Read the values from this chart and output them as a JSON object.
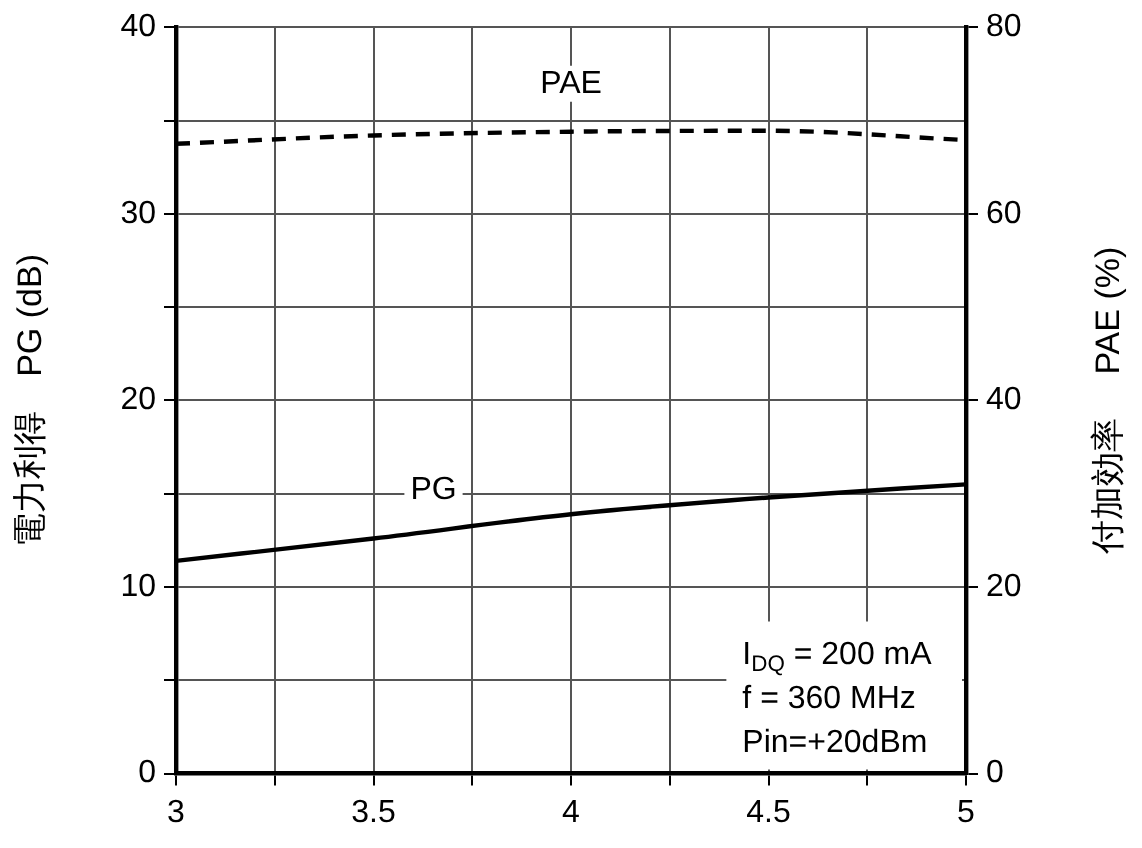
{
  "chart_data": {
    "type": "line",
    "xlabel": null,
    "ylabel": "電力利得　PG (dB)",
    "y2label": "付加効率　 PAE (%)",
    "xlim": [
      3,
      5
    ],
    "xticks": [
      3,
      {
        "value": 3.25,
        "label": null
      },
      3.5,
      {
        "value": 3.75,
        "label": null
      },
      4,
      {
        "value": 4.25,
        "label": null
      },
      4.5,
      {
        "value": 4.75,
        "label": null
      },
      5
    ],
    "ylim": [
      0,
      40
    ],
    "yticks": [
      0,
      {
        "value": 5,
        "label": null
      },
      10,
      {
        "value": 15,
        "label": null
      },
      20,
      {
        "value": 25,
        "label": null
      },
      30,
      {
        "value": 35,
        "label": null
      },
      40
    ],
    "y2lim": [
      0,
      80
    ],
    "y2ticks": [
      0,
      20,
      40,
      60,
      80
    ],
    "grid": true,
    "marker": "none",
    "x": [
      3,
      3.5,
      4,
      4.5,
      5
    ],
    "series": [
      {
        "name": "PAE",
        "color": "#000000",
        "axis": "y2",
        "line_style": "dashed",
        "values": [
          67.5,
          68.4,
          68.8,
          68.9,
          67.9
        ]
      },
      {
        "name": "PG",
        "color": "#000000",
        "axis": "y",
        "line_style": "solid",
        "values": [
          11.4,
          12.6,
          13.9,
          14.8,
          15.5
        ]
      }
    ],
    "annotations": [
      "I$_{DQ}$ = 200 mA",
      "f = 360 MHz",
      "Pin=+20dBm"
    ]
  }
}
